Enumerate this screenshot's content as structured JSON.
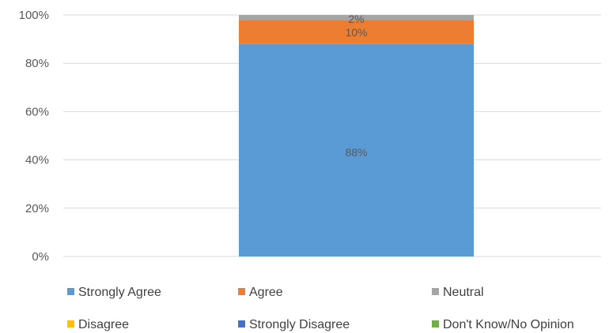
{
  "chart_data": {
    "type": "bar",
    "stacked": true,
    "categories": [
      ""
    ],
    "ylim": [
      0,
      100
    ],
    "yticks": [
      0,
      20,
      40,
      60,
      80,
      100
    ],
    "ytick_labels": [
      "0%",
      "20%",
      "40%",
      "60%",
      "80%",
      "100%"
    ],
    "grid": true,
    "legend_position": "bottom",
    "series": [
      {
        "name": "Strongly Agree",
        "values": [
          88
        ],
        "label": "88%",
        "color": "#5b9bd5"
      },
      {
        "name": "Agree",
        "values": [
          10
        ],
        "label": "10%",
        "color": "#ed7d31"
      },
      {
        "name": "Neutral",
        "values": [
          2
        ],
        "label": "2%",
        "color": "#a5a5a5"
      },
      {
        "name": "Disagree",
        "values": [
          0
        ],
        "label": "",
        "color": "#ffc000"
      },
      {
        "name": "Strongly Disagree",
        "values": [
          0
        ],
        "label": "",
        "color": "#4472c4"
      },
      {
        "name": "Don't Know/No Opinion",
        "values": [
          0
        ],
        "label": "",
        "color": "#70ad47"
      }
    ]
  }
}
